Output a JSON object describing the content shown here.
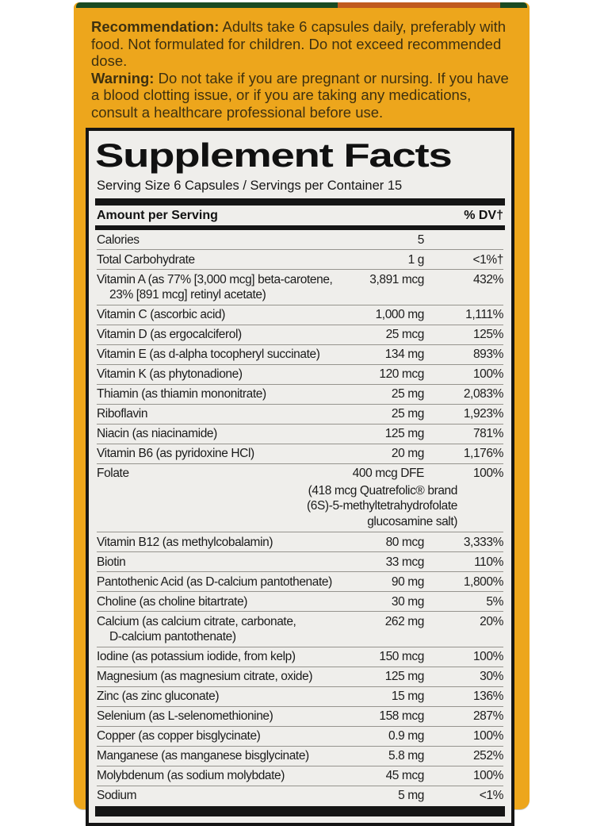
{
  "label": {
    "colors": {
      "gold": "#EDA61C",
      "ink": "#3E3110",
      "panel_bg": "#EFEEEB",
      "bar_black": "#151515",
      "rule_gray": "#96948e",
      "strip_green": "#1A4A22",
      "strip_orange": "#C05A1E"
    }
  },
  "usage": {
    "recommendation_label": "Recommendation:",
    "recommendation_text": "Adults take 6 capsules daily, preferably with food. Not formulated for children. Do not exceed recommended dose.",
    "warning_label": "Warning:",
    "warning_text": "Do not take if you are pregnant or nursing. If you have a blood clotting issue, or if you are taking any medications, consult a healthcare professional before use."
  },
  "facts": {
    "title": "Supplement Facts",
    "serving_line": "Serving Size 6 Capsules / Servings per Container 15",
    "header_left": "Amount per Serving",
    "header_right": "% DV†",
    "rows": [
      {
        "name": "Calories",
        "amount": "5",
        "dv": ""
      },
      {
        "name": "Total Carbohydrate",
        "amount": "1 g",
        "dv": "<1%†"
      },
      {
        "name": "Vitamin A (as 77% [3,000 mcg] beta-carotene,\n23% [891 mcg] retinyl acetate)",
        "amount": "3,891 mcg",
        "dv": "432%"
      },
      {
        "name": "Vitamin C (ascorbic acid)",
        "amount": "1,000 mg",
        "dv": "1,111%"
      },
      {
        "name": "Vitamin D (as ergocalciferol)",
        "amount": "25 mcg",
        "dv": "125%"
      },
      {
        "name": "Vitamin E (as d-alpha tocopheryl succinate)",
        "amount": "134 mg",
        "dv": "893%"
      },
      {
        "name": "Vitamin K (as phytonadione)",
        "amount": "120 mcg",
        "dv": "100%"
      },
      {
        "name": "Thiamin (as thiamin mononitrate)",
        "amount": "25 mg",
        "dv": "2,083%"
      },
      {
        "name": "Riboflavin",
        "amount": "25 mg",
        "dv": "1,923%"
      },
      {
        "name": "Niacin (as niacinamide)",
        "amount": "125 mg",
        "dv": "781%"
      },
      {
        "name": "Vitamin B6 (as pyridoxine HCl)",
        "amount": "20 mg",
        "dv": "1,176%"
      },
      {
        "name": "Folate",
        "amount": "400 mcg DFE",
        "dv": "100%",
        "sub_lines": [
          "(418 mcg Quatrefolic® brand",
          "(6S)-5-methyltetrahydrofolate",
          "glucosamine salt)"
        ]
      },
      {
        "name": "Vitamin B12 (as methylcobalamin)",
        "amount": "80 mcg",
        "dv": "3,333%"
      },
      {
        "name": "Biotin",
        "amount": "33 mcg",
        "dv": "110%"
      },
      {
        "name": "Pantothenic Acid (as D-calcium pantothenate)",
        "amount": "90 mg",
        "dv": "1,800%"
      },
      {
        "name": "Choline (as choline bitartrate)",
        "amount": "30 mg",
        "dv": "5%"
      },
      {
        "name": "Calcium (as calcium citrate, carbonate,\nD-calcium pantothenate)",
        "amount": "262 mg",
        "dv": "20%"
      },
      {
        "name": "Iodine (as potassium iodide, from kelp)",
        "amount": "150 mcg",
        "dv": "100%"
      },
      {
        "name": "Magnesium (as magnesium citrate, oxide)",
        "amount": "125 mg",
        "dv": "30%"
      },
      {
        "name": "Zinc (as zinc gluconate)",
        "amount": "15 mg",
        "dv": "136%"
      },
      {
        "name": "Selenium (as L-selenomethionine)",
        "amount": "158 mcg",
        "dv": "287%"
      },
      {
        "name": "Copper (as copper bisglycinate)",
        "amount": "0.9 mg",
        "dv": "100%"
      },
      {
        "name": "Manganese (as manganese bisglycinate)",
        "amount": "5.8 mg",
        "dv": "252%"
      },
      {
        "name": "Molybdenum (as sodium molybdate)",
        "amount": "45 mcg",
        "dv": "100%"
      },
      {
        "name": "Sodium",
        "amount": "5 mg",
        "dv": "<1%"
      }
    ]
  }
}
